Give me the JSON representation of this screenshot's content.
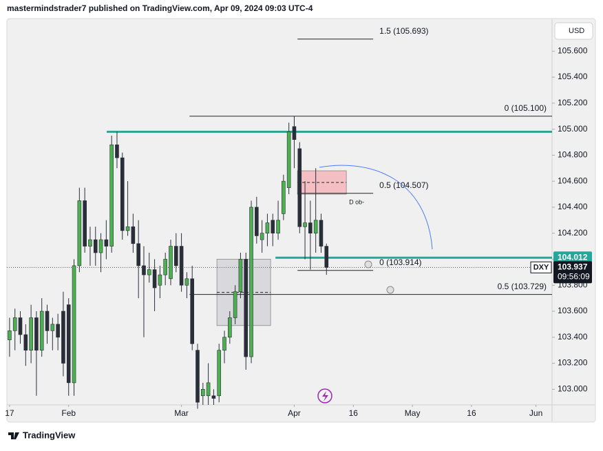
{
  "header": "mastermindstrader7 published on TradingView.com, Apr 09, 2024 09:03 UTC-4",
  "footer": "TradingView",
  "currency": "USD",
  "chart_data": {
    "type": "candlestick",
    "symbol": "DXY",
    "countdown": "09:56:09",
    "last_price": 103.937,
    "up_color": "#4caf50",
    "down_color": "#2a2e39",
    "xlim": [
      -0.5,
      101
    ],
    "ylim": [
      102.88,
      105.845
    ],
    "xticks": [
      {
        "value": 0,
        "label": "17"
      },
      {
        "value": 11,
        "label": "Feb"
      },
      {
        "value": 32,
        "label": "Mar"
      },
      {
        "value": 53,
        "label": "Apr"
      },
      {
        "value": 64,
        "label": "16"
      },
      {
        "value": 75,
        "label": "May"
      },
      {
        "value": 86,
        "label": "16"
      },
      {
        "value": 98,
        "label": "Jun"
      }
    ],
    "yticks": [
      {
        "value": 103.0,
        "label": "103.000"
      },
      {
        "value": 103.2,
        "label": "103.200"
      },
      {
        "value": 103.4,
        "label": "103.400"
      },
      {
        "value": 103.6,
        "label": "103.600"
      },
      {
        "value": 103.8,
        "label": "103.800"
      },
      {
        "value": 104.0,
        "label": "104.000"
      },
      {
        "value": 104.2,
        "label": "104.200"
      },
      {
        "value": 104.4,
        "label": "104.400"
      },
      {
        "value": 104.6,
        "label": "104.600"
      },
      {
        "value": 104.8,
        "label": "104.800"
      },
      {
        "value": 105.0,
        "label": "105.000"
      },
      {
        "value": 105.2,
        "label": "105.200"
      },
      {
        "value": 105.4,
        "label": "105.400"
      },
      {
        "value": 105.6,
        "label": "105.600"
      }
    ],
    "open": [
      103.38,
      103.45,
      103.55,
      103.42,
      103.3,
      103.55,
      103.3,
      103.6,
      103.45,
      103.5,
      103.6,
      103.65,
      103.05,
      103.95,
      104.45,
      104.1,
      104.15,
      104.05,
      104.15,
      104.1,
      104.88,
      104.78,
      104.22,
      104.25,
      104.12,
      103.95,
      103.88,
      103.92,
      103.8,
      103.88,
      103.85,
      104.1,
      104.1,
      103.8,
      103.85,
      103.3,
      102.95,
      102.95,
      102.95,
      102.95,
      103.3,
      103.4,
      103.55,
      103.75,
      104.0,
      103.25,
      104.4,
      104.15,
      104.2,
      104.3,
      104.2,
      104.35,
      104.55,
      105.02,
      104.85,
      104.25,
      104.28,
      104.2,
      104.3,
      104.1
    ],
    "high": [
      103.55,
      103.62,
      103.6,
      103.5,
      103.65,
      103.6,
      103.7,
      103.65,
      103.55,
      103.58,
      103.75,
      103.7,
      104.0,
      104.55,
      104.55,
      104.25,
      104.25,
      104.2,
      104.3,
      104.95,
      104.98,
      104.82,
      104.6,
      104.35,
      104.3,
      104.1,
      104.05,
      104.0,
      103.95,
      104.05,
      104.15,
      104.2,
      104.2,
      103.9,
      103.95,
      103.35,
      103.05,
      103.2,
      103.0,
      103.35,
      103.45,
      103.6,
      103.8,
      104.05,
      104.05,
      104.45,
      104.48,
      104.3,
      104.35,
      104.35,
      104.45,
      104.65,
      105.05,
      105.1,
      104.9,
      104.6,
      104.45,
      104.7,
      104.35,
      104.12
    ],
    "low": [
      103.25,
      103.3,
      103.35,
      103.18,
      103.2,
      102.95,
      103.25,
      103.35,
      103.3,
      103.3,
      103.1,
      102.95,
      102.95,
      103.9,
      104.05,
      103.95,
      103.95,
      103.9,
      104.0,
      104.05,
      104.7,
      104.15,
      104.18,
      104.05,
      103.7,
      103.4,
      103.82,
      103.6,
      103.7,
      103.8,
      103.8,
      103.9,
      103.75,
      103.7,
      103.3,
      102.85,
      102.88,
      102.88,
      102.88,
      102.9,
      103.2,
      103.35,
      103.5,
      103.7,
      103.15,
      103.2,
      104.12,
      104.05,
      104.1,
      104.1,
      104.15,
      104.3,
      104.5,
      104.7,
      104.2,
      104.0,
      103.92,
      104.05,
      104.05,
      103.88
    ],
    "close": [
      103.45,
      103.55,
      103.42,
      103.3,
      103.55,
      103.3,
      103.6,
      103.45,
      103.5,
      103.4,
      103.2,
      103.05,
      103.95,
      104.45,
      104.1,
      104.15,
      104.05,
      104.15,
      104.1,
      104.88,
      104.78,
      104.22,
      104.25,
      104.12,
      103.95,
      103.88,
      103.92,
      103.78,
      103.88,
      104.0,
      104.1,
      103.95,
      103.8,
      103.85,
      103.35,
      102.9,
      103.0,
      103.05,
      102.93,
      103.3,
      103.4,
      103.55,
      103.75,
      104.0,
      103.25,
      104.4,
      104.18,
      104.2,
      104.28,
      104.2,
      104.3,
      104.6,
      104.98,
      104.92,
      104.25,
      104.28,
      104.2,
      104.3,
      104.1,
      103.937
    ],
    "levels": [
      {
        "value": 104.98,
        "x0": 18.1,
        "color": "#26a69a"
      },
      {
        "value": 104.012,
        "x0": 49.5,
        "color": "#26a69a"
      }
    ],
    "fib_lines": [
      {
        "label": "1.5 (105.693)",
        "value": 105.693,
        "x0": 53.6,
        "x1": 67.7
      },
      {
        "label": "0 (105.100)",
        "value": 105.1,
        "x0": 33.5,
        "x1": 101
      },
      {
        "label": "0.5 (104.507)",
        "value": 104.507,
        "x0": 53.6,
        "x1": 67.7
      },
      {
        "label": "0 (103.914)",
        "value": 103.914,
        "x0": 53.6,
        "x1": 67.7
      },
      {
        "label": "0.5 (103.729)",
        "value": 103.729,
        "x0": 33.5,
        "x1": 101
      }
    ],
    "boxes": [
      {
        "top": 104.68,
        "bottom": 104.5,
        "x0": 53.6,
        "x1": 62.7,
        "color": "#f4b6bb",
        "label": "D ob-"
      },
      {
        "top": 104.0,
        "bottom": 103.49,
        "x0": 38.6,
        "x1": 48.6,
        "color": "#d3d4d9"
      }
    ]
  }
}
